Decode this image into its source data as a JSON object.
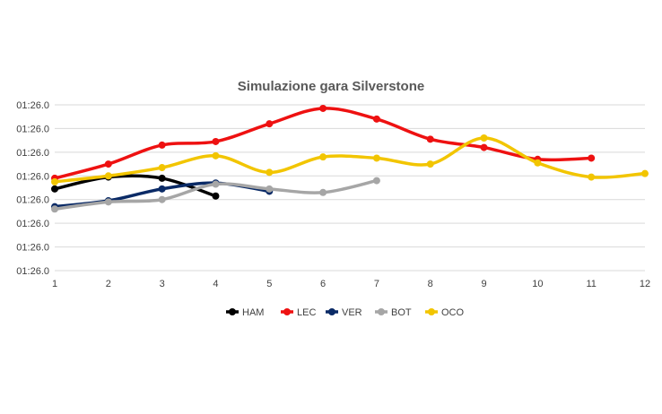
{
  "chart_data": {
    "type": "line",
    "title": "Simulazione gara Silverstone",
    "xlabel": "",
    "ylabel": "",
    "x_ticks": [
      "1",
      "2",
      "3",
      "4",
      "5",
      "6",
      "7",
      "8",
      "9",
      "10",
      "11",
      "12"
    ],
    "y_ticks": [
      "01:26.0",
      "01:26.0",
      "01:26.0",
      "01:26.0",
      "01:26.0",
      "01:26.0",
      "01:26.0",
      "01:26.0"
    ],
    "ylim": [
      0,
      7
    ],
    "xlim": [
      1,
      12
    ],
    "grid": "horizontal",
    "legend_position": "bottom",
    "series": [
      {
        "name": "HAM",
        "color": "#000000",
        "x": [
          1,
          2,
          3,
          4
        ],
        "y": [
          3.45,
          3.95,
          3.9,
          3.15
        ]
      },
      {
        "name": "LEC",
        "color": "#ee1111",
        "x": [
          1,
          2,
          3,
          4,
          5,
          6,
          7,
          8,
          9,
          10,
          11
        ],
        "y": [
          3.9,
          4.5,
          5.3,
          5.45,
          6.2,
          6.85,
          6.4,
          5.55,
          5.2,
          4.7,
          4.75
        ]
      },
      {
        "name": "VER",
        "color": "#0a2a66",
        "x": [
          1,
          2,
          3,
          4,
          5
        ],
        "y": [
          2.7,
          2.95,
          3.45,
          3.7,
          3.35
        ]
      },
      {
        "name": "BOT",
        "color": "#a6a6a6",
        "x": [
          1,
          2,
          3,
          4,
          5,
          6,
          7
        ],
        "y": [
          2.6,
          2.9,
          3.0,
          3.65,
          3.45,
          3.3,
          3.8
        ]
      },
      {
        "name": "OCO",
        "color": "#f2c500",
        "x": [
          1,
          2,
          3,
          4,
          5,
          6,
          7,
          8,
          9,
          10,
          11,
          12
        ],
        "y": [
          3.75,
          4.0,
          4.35,
          4.85,
          4.15,
          4.8,
          4.75,
          4.5,
          5.6,
          4.55,
          3.95,
          4.1
        ]
      }
    ]
  }
}
